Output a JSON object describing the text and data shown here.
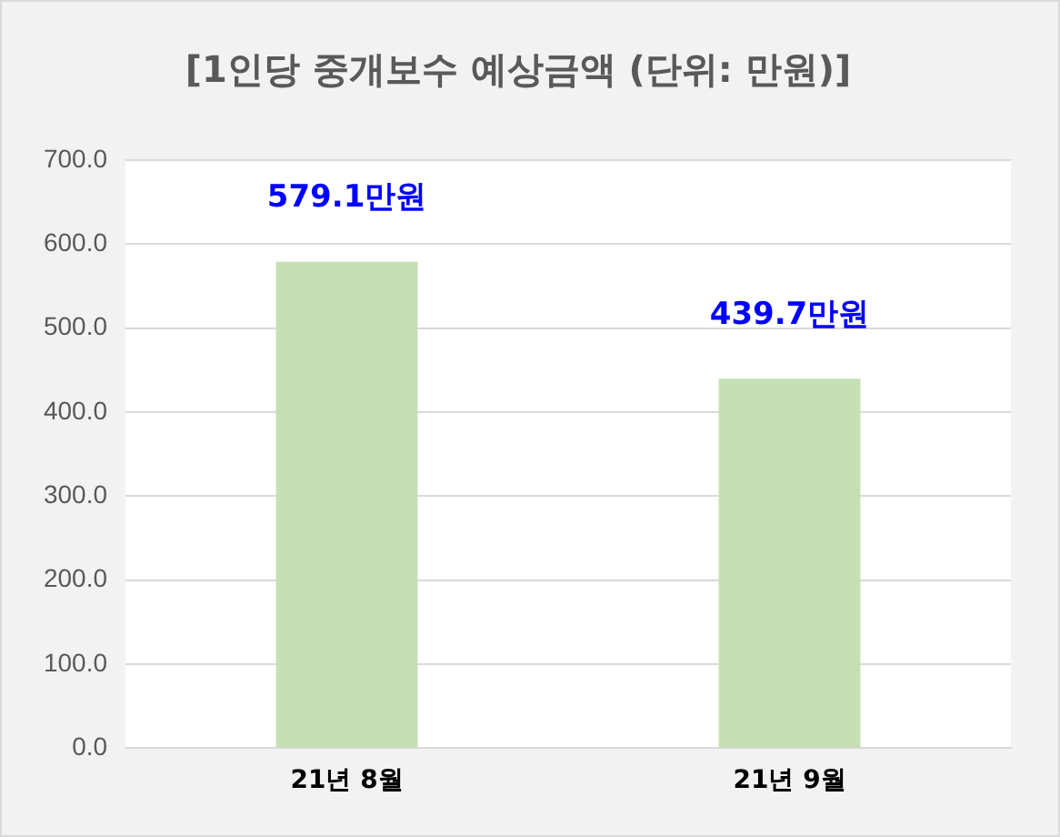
{
  "chart_data": {
    "type": "bar",
    "title": "[1인당 중개보수 예상금액 (단위: 만원)]",
    "categories": [
      "21년 8월",
      "21년 9월"
    ],
    "values": [
      579.1,
      439.7
    ],
    "value_labels": [
      "579.1만원",
      "439.7만원"
    ],
    "color": "#c5e0b4",
    "ylim": [
      0,
      700
    ],
    "yticks": [
      {
        "value": 0,
        "label": "0.0"
      },
      {
        "value": 100,
        "label": "100.0"
      },
      {
        "value": 200,
        "label": "200.0"
      },
      {
        "value": 300,
        "label": "300.0"
      },
      {
        "value": 400,
        "label": "400.0"
      },
      {
        "value": 500,
        "label": "500.0"
      },
      {
        "value": 600,
        "label": "600.0"
      },
      {
        "value": 700,
        "label": "700.0"
      }
    ],
    "grid": "y",
    "legend": false
  }
}
